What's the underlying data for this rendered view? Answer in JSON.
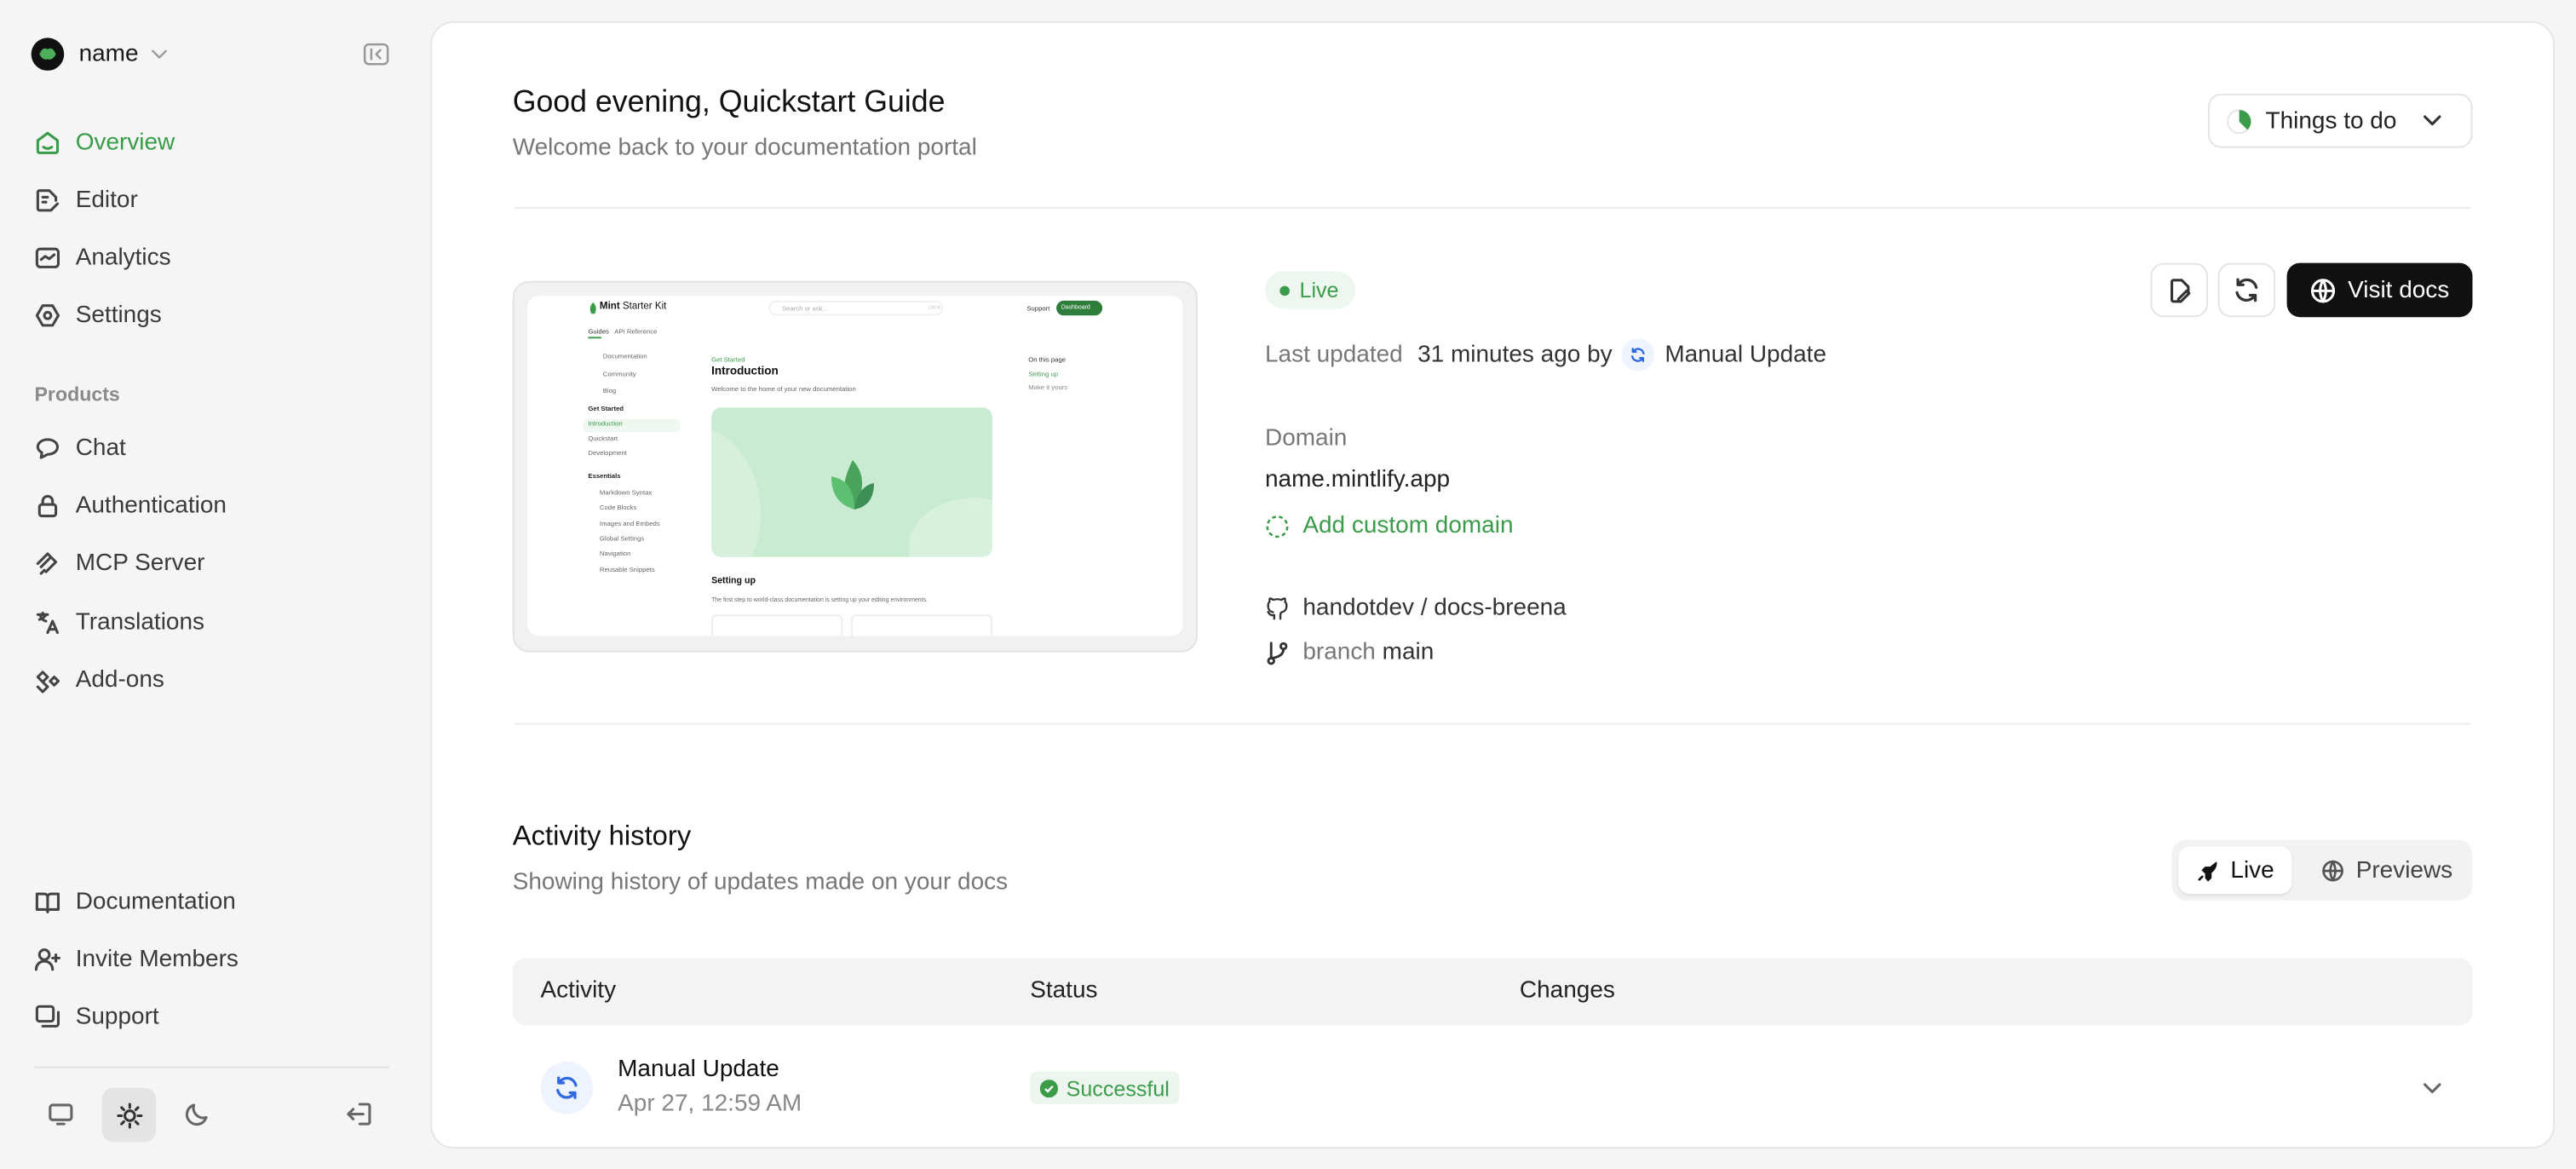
{
  "sidebar": {
    "org_name": "name",
    "nav": [
      {
        "label": "Overview",
        "icon": "home-icon",
        "active": true
      },
      {
        "label": "Editor",
        "icon": "editor-icon"
      },
      {
        "label": "Analytics",
        "icon": "analytics-icon"
      },
      {
        "label": "Settings",
        "icon": "gear-icon"
      }
    ],
    "products_heading": "Products",
    "products": [
      {
        "label": "Chat",
        "icon": "chat-icon"
      },
      {
        "label": "Authentication",
        "icon": "lock-icon"
      },
      {
        "label": "MCP Server",
        "icon": "mcp-icon"
      },
      {
        "label": "Translations",
        "icon": "translate-icon"
      },
      {
        "label": "Add-ons",
        "icon": "addons-icon"
      }
    ],
    "bottom": [
      {
        "label": "Documentation",
        "icon": "book-icon"
      },
      {
        "label": "Invite Members",
        "icon": "user-plus-icon"
      },
      {
        "label": "Support",
        "icon": "support-icon"
      }
    ],
    "theme_selected": "light"
  },
  "header": {
    "title": "Good evening, Quickstart Guide",
    "subtitle": "Welcome back to your documentation portal",
    "things_to_do": "Things to do"
  },
  "deployment": {
    "status": "Live",
    "last_updated_label": "Last updated",
    "last_updated_value": "31 minutes ago by",
    "updated_by": "Manual Update",
    "visit_docs": "Visit docs",
    "domain_label": "Domain",
    "domain": "name.mintlify.app",
    "add_custom_domain": "Add custom domain",
    "repo": "handotdev / docs-breena",
    "branch_label": "branch",
    "branch": "main"
  },
  "preview": {
    "brand_bold": "Mint",
    "brand": "Starter Kit",
    "search": "Search or ask...",
    "shortcut": "Ctrl K",
    "support": "Support",
    "dashboard": "Dashboard",
    "tabs": [
      "Guides",
      "API Reference"
    ],
    "links": [
      "Documentation",
      "Community",
      "Blog"
    ],
    "group1": "Get Started",
    "group1_items": [
      "Introduction",
      "Quickstart",
      "Development"
    ],
    "group2": "Essentials",
    "group2_items": [
      "Markdown Syntax",
      "Code Blocks",
      "Images and Embeds",
      "Global Settings",
      "Navigation",
      "Reusable Snippets"
    ],
    "eyebrow": "Get Started",
    "page_title": "Introduction",
    "page_sub": "Welcome to the home of your new documentation",
    "section": "Setting up",
    "section_text": "The first step to world-class documentation is setting up your editing environments.",
    "toc_title": "On this page",
    "toc": [
      "Setting up",
      "Make it yours"
    ]
  },
  "activity": {
    "title": "Activity history",
    "subtitle": "Showing history of updates made on your docs",
    "toggle": [
      "Live",
      "Previews"
    ],
    "toggle_selected": "Live",
    "columns": [
      "Activity",
      "Status",
      "Changes"
    ],
    "rows": [
      {
        "name": "Manual Update",
        "date": "Apr 27, 12:59 AM",
        "status": "Successful"
      }
    ]
  },
  "colors": {
    "accent": "#3a9c48",
    "primary_button": "#111111",
    "info": "#2f6ae0"
  }
}
